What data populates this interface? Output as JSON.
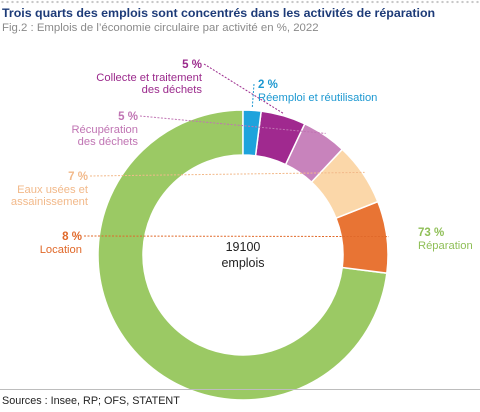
{
  "header": {
    "title": "Trois quarts des emplois sont concentrés dans les activités de réparation",
    "subtitle": "Fig.2 : Emplois de l’économie circulaire par activité en %, 2022"
  },
  "center_label": {
    "line1": "19100",
    "line2": "emplois"
  },
  "footer": {
    "source": "Sources : Insee, RP; OFS, STATENT"
  },
  "chart_data": {
    "type": "pie",
    "title": "Trois quarts des emplois sont concentrés dans les activités de réparation",
    "subtitle": "Fig.2 : Emplois de l’économie circulaire par activité en %, 2022",
    "total": "19100",
    "slices": [
      {
        "label": "Réparation",
        "value": 73,
        "value_label": "73 %",
        "color": "#9bc964",
        "label_color": "#8fbf57"
      },
      {
        "label": "Location",
        "value": 8,
        "value_label": "8 %",
        "color": "#e87434",
        "label_color": "#e0692a"
      },
      {
        "label": "Eaux usées et assainissement",
        "value": 7,
        "value_label": "7 %",
        "color": "#fbd7a9",
        "label_color": "#f2b98a"
      },
      {
        "label": "Récupération des déchets",
        "value": 5,
        "value_label": "5 %",
        "color": "#c883bc",
        "label_color": "#c074b3"
      },
      {
        "label": "Collecte et traitement des déchets",
        "value": 5,
        "value_label": "5 %",
        "color": "#a0298f",
        "label_color": "#9b2a8c"
      },
      {
        "label": "Réemploi et réutilisation",
        "value": 2,
        "value_label": "2 %",
        "color": "#1ea3dc",
        "label_color": "#1c98d1"
      }
    ]
  }
}
